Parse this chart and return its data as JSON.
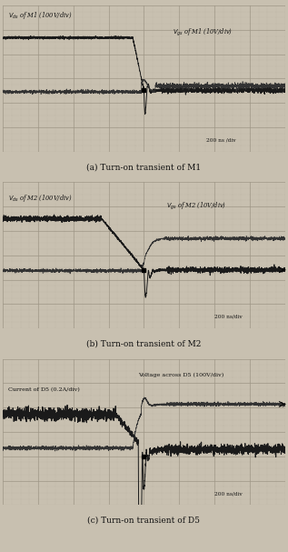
{
  "fig_width": 3.17,
  "fig_height": 6.07,
  "bg_color": "#c8c0b0",
  "panel_bg": "#d8d0c0",
  "grid_color": "#a09888",
  "captions": [
    "(a) Turn-on transient of M1",
    "(b) Turn-on transient of M2",
    "(c) Turn-on transient of D5"
  ],
  "panel_labels_tl": [
    "Vds of M1 (100V/div)",
    "Vds of M2 (100V/div)",
    "Current of D5 (0.2A/div)"
  ],
  "panel_labels_tr": [
    "Vgs of M1 (10V/div)",
    "Vgs of M2 (10V/div)",
    "Voltage across D5 (100V/div)"
  ],
  "time_labels": [
    "200 ns /div",
    "200 ns/div",
    "200 ns/div"
  ],
  "n_grid_cols": 8,
  "n_grid_rows": 6
}
